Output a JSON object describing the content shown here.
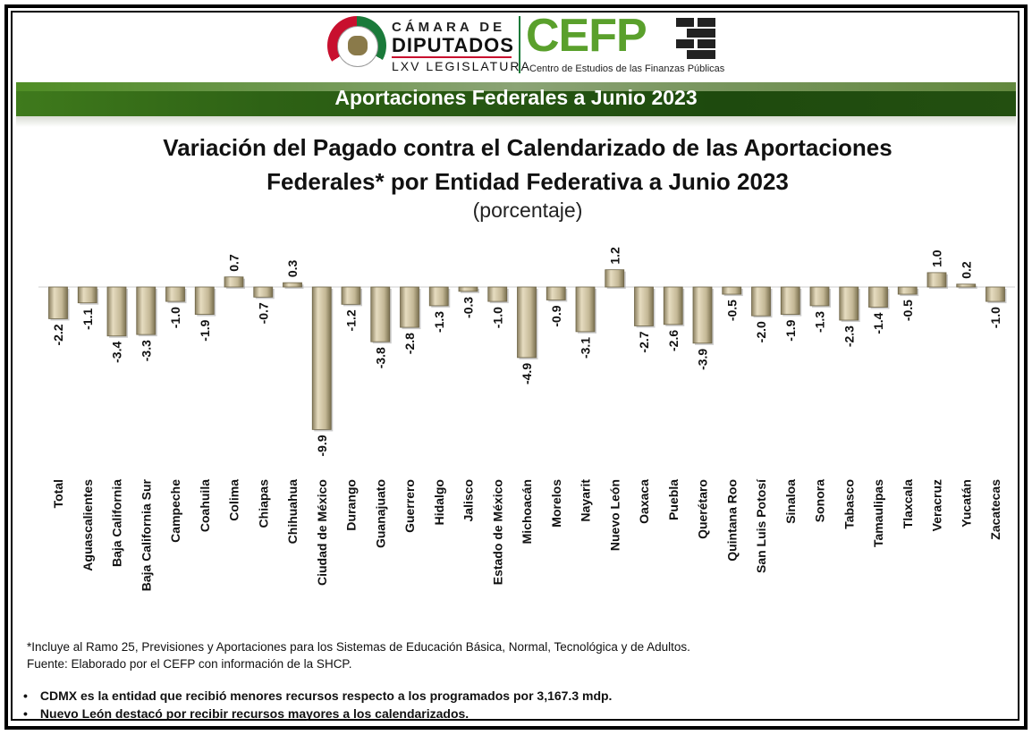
{
  "header": {
    "camara_line1": "CÁMARA DE",
    "camara_line2": "DIPUTADOS",
    "camara_line3": "LXV LEGISLATURA",
    "cefp_logo": "CEFP",
    "cefp_subtitle": "Centro de Estudios de las Finanzas Públicas"
  },
  "banner_title": "Aportaciones Federales a Junio 2023",
  "chart_data": {
    "type": "bar",
    "title_line1": "Variación del Pagado contra el Calendarizado de las Aportaciones",
    "title_line2": "Federales* por Entidad Federativa a Junio 2023",
    "subtitle": "(porcentaje)",
    "categories": [
      "Total",
      "Aguascalientes",
      "Baja California",
      "Baja California Sur",
      "Campeche",
      "Coahuila",
      "Colima",
      "Chiapas",
      "Chihuahua",
      "Ciudad de México",
      "Durango",
      "Guanajuato",
      "Guerrero",
      "Hidalgo",
      "Jalisco",
      "Estado de México",
      "Michoacán",
      "Morelos",
      "Nayarit",
      "Nuevo León",
      "Oaxaca",
      "Puebla",
      "Querétaro",
      "Quintana Roo",
      "San Luis Potosí",
      "Sinaloa",
      "Sonora",
      "Tabasco",
      "Tamaulipas",
      "Tlaxcala",
      "Veracruz",
      "Yucatán",
      "Zacatecas"
    ],
    "values": [
      -2.2,
      -1.1,
      -3.4,
      -3.3,
      -1.0,
      -1.9,
      0.7,
      -0.7,
      0.3,
      -9.9,
      -1.2,
      -3.8,
      -2.8,
      -1.3,
      -0.3,
      -1.0,
      -4.9,
      -0.9,
      -3.1,
      1.2,
      -2.7,
      -2.6,
      -3.9,
      -0.5,
      -2.0,
      -1.9,
      -1.3,
      -2.3,
      -1.4,
      -0.5,
      1.0,
      0.2,
      -1.0
    ],
    "labels": [
      "-2.2",
      "-1.1",
      "-3.4",
      "-3.3",
      "-1.0",
      "-1.9",
      "0.7",
      "-0.7",
      "0.3",
      "-9.9",
      "-1.2",
      "-3.8",
      "-2.8",
      "-1.3",
      "-0.3",
      "-1.0",
      "-4.9",
      "-0.9",
      "-3.1",
      "1.2",
      "-2.7",
      "-2.6",
      "-3.9",
      "-0.5",
      "-2.0",
      "-1.9",
      "-1.3",
      "-2.3",
      "-1.4",
      "-0.5",
      "1.0",
      "0.2",
      "-1.0"
    ],
    "bar_color": "#c4b896",
    "grid": false,
    "legend": "none"
  },
  "footnote": "*Incluye al Ramo 25, Previsiones y Aportaciones para los Sistemas de Educación Básica, Normal, Tecnológica y de Adultos.",
  "source": "Fuente: Elaborado por el CEFP con información de la SHCP.",
  "bullets": [
    "CDMX es la entidad que recibió menores recursos respecto a los programados por 3,167.3 mdp.",
    "Nuevo León destacó por recibir recursos mayores a los calendarizados."
  ],
  "bullet_symbol": "•"
}
